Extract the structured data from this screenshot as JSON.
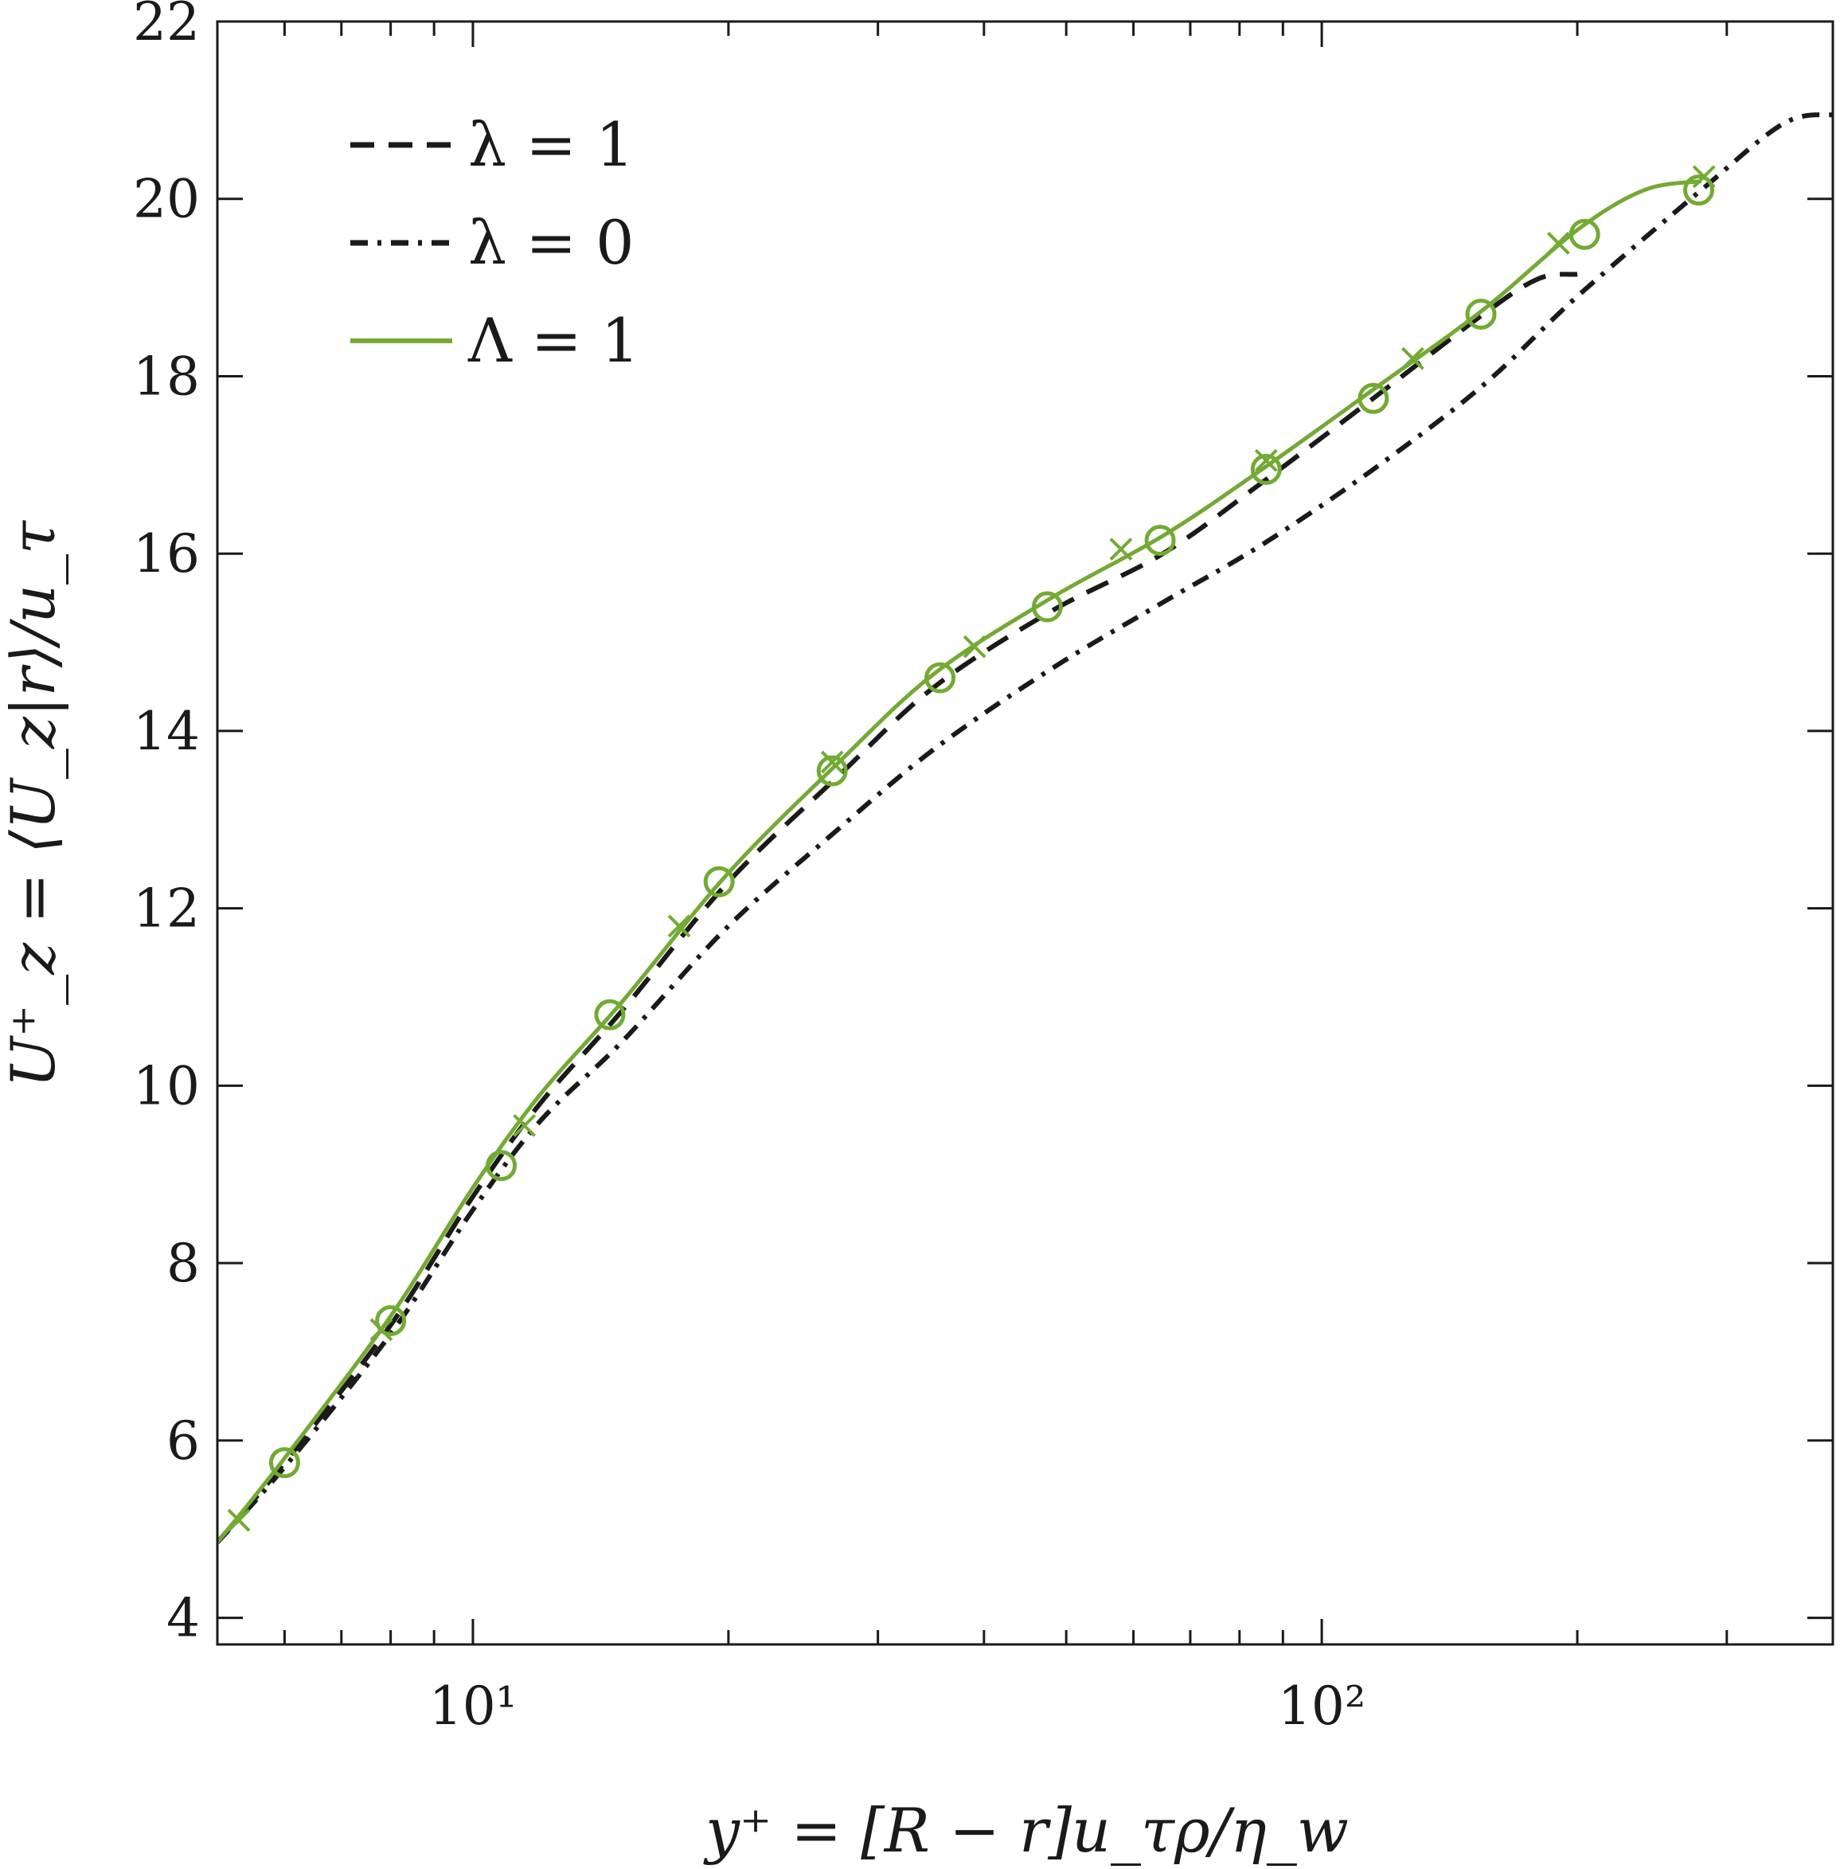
{
  "chart_data": {
    "type": "line",
    "xlabel": "y⁺ = [R − r]u_τρ/η_w",
    "ylabel": "U⁺_z = ⟨U_z|r⟩/u_τ",
    "xscale": "log",
    "xlim": [
      5,
      400
    ],
    "ylim": [
      3.7,
      22
    ],
    "x_ticks": [
      {
        "value": 10,
        "label": "10¹"
      },
      {
        "value": 100,
        "label": "10²"
      }
    ],
    "y_ticks": [
      4,
      6,
      8,
      10,
      12,
      14,
      16,
      18,
      20,
      22
    ],
    "grid": false,
    "legend": "top-left",
    "series": [
      {
        "name": "λ = 1",
        "style": "dashed",
        "color": "#1a1a1a",
        "x": [
          5,
          6,
          8,
          10,
          12,
          15,
          20,
          27,
          35,
          48,
          65,
          85,
          115,
          155,
          180,
          200
        ],
        "y": [
          4.85,
          5.75,
          7.3,
          8.75,
          9.8,
          10.85,
          12.3,
          13.5,
          14.5,
          15.35,
          16.0,
          16.8,
          17.75,
          18.7,
          19.1,
          19.15
        ]
      },
      {
        "name": "λ = 0",
        "style": "dashdot",
        "color": "#1a1a1a",
        "x": [
          5,
          6,
          8,
          10,
          12,
          15,
          20,
          27,
          35,
          48,
          65,
          85,
          115,
          155,
          200,
          280,
          350,
          400
        ],
        "y": [
          4.85,
          5.7,
          7.2,
          8.6,
          9.6,
          10.5,
          11.8,
          12.9,
          13.8,
          14.7,
          15.45,
          16.1,
          16.95,
          17.9,
          18.9,
          20.1,
          20.85,
          20.95
        ]
      },
      {
        "name": "Λ = 1",
        "style": "solid",
        "color": "#73aa34",
        "x": [
          5,
          6,
          8,
          10,
          12,
          15,
          20,
          27,
          35,
          48,
          65,
          85,
          115,
          155,
          200,
          240,
          280
        ],
        "y": [
          4.85,
          5.8,
          7.4,
          8.85,
          9.9,
          10.95,
          12.4,
          13.65,
          14.65,
          15.5,
          16.2,
          16.95,
          17.85,
          18.75,
          19.65,
          20.1,
          20.2
        ]
      }
    ],
    "markers": {
      "series": "Λ = 1",
      "color": "#73aa34",
      "circles": [
        {
          "x": 6.0,
          "y": 5.75
        },
        {
          "x": 8.0,
          "y": 7.35
        },
        {
          "x": 10.8,
          "y": 9.1
        },
        {
          "x": 14.5,
          "y": 10.8
        },
        {
          "x": 19.5,
          "y": 12.3
        },
        {
          "x": 26.5,
          "y": 13.55
        },
        {
          "x": 35.5,
          "y": 14.6
        },
        {
          "x": 47.5,
          "y": 15.4
        },
        {
          "x": 64.5,
          "y": 16.15
        },
        {
          "x": 86,
          "y": 16.95
        },
        {
          "x": 115,
          "y": 17.75
        },
        {
          "x": 154,
          "y": 18.7
        },
        {
          "x": 204,
          "y": 19.6
        },
        {
          "x": 278,
          "y": 20.1
        }
      ],
      "crosses": [
        {
          "x": 5.3,
          "y": 5.1
        },
        {
          "x": 7.8,
          "y": 7.25
        },
        {
          "x": 11.5,
          "y": 9.55
        },
        {
          "x": 17.5,
          "y": 11.8
        },
        {
          "x": 26.5,
          "y": 13.65
        },
        {
          "x": 39,
          "y": 14.95
        },
        {
          "x": 58,
          "y": 16.05
        },
        {
          "x": 86,
          "y": 17.05
        },
        {
          "x": 128,
          "y": 18.2
        },
        {
          "x": 190,
          "y": 19.5
        },
        {
          "x": 282,
          "y": 20.25
        }
      ]
    }
  }
}
